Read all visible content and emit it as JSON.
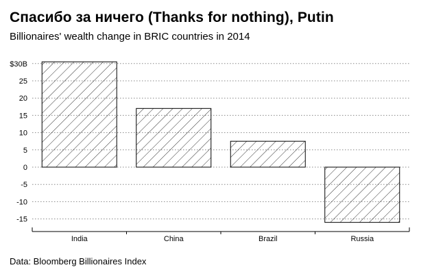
{
  "chart_data": {
    "type": "bar",
    "title": "Спасибо за ничего (Thanks for nothing), Putin",
    "subtitle": "Billionaires' wealth change in BRIC countries in 2014",
    "source": "Data: Bloomberg Billionaires Index",
    "categories": [
      "India",
      "China",
      "Brazil",
      "Russia"
    ],
    "values": [
      30.5,
      17,
      7.5,
      -16
    ],
    "xlabel": "",
    "ylabel": "",
    "ylim": [
      -17,
      31
    ],
    "yticks": [
      30,
      25,
      20,
      15,
      10,
      5,
      0,
      -5,
      -10,
      -15
    ],
    "ytick_labels": [
      "$30B",
      "25",
      "20",
      "15",
      "10",
      "5",
      "0",
      "-5",
      "-10",
      "-15"
    ],
    "grid": true,
    "bar_style": "diagonal hatch",
    "colors": {
      "bar_stroke": "#000000",
      "hatch": "#000000",
      "grid": "#888888",
      "axis": "#000000"
    }
  }
}
